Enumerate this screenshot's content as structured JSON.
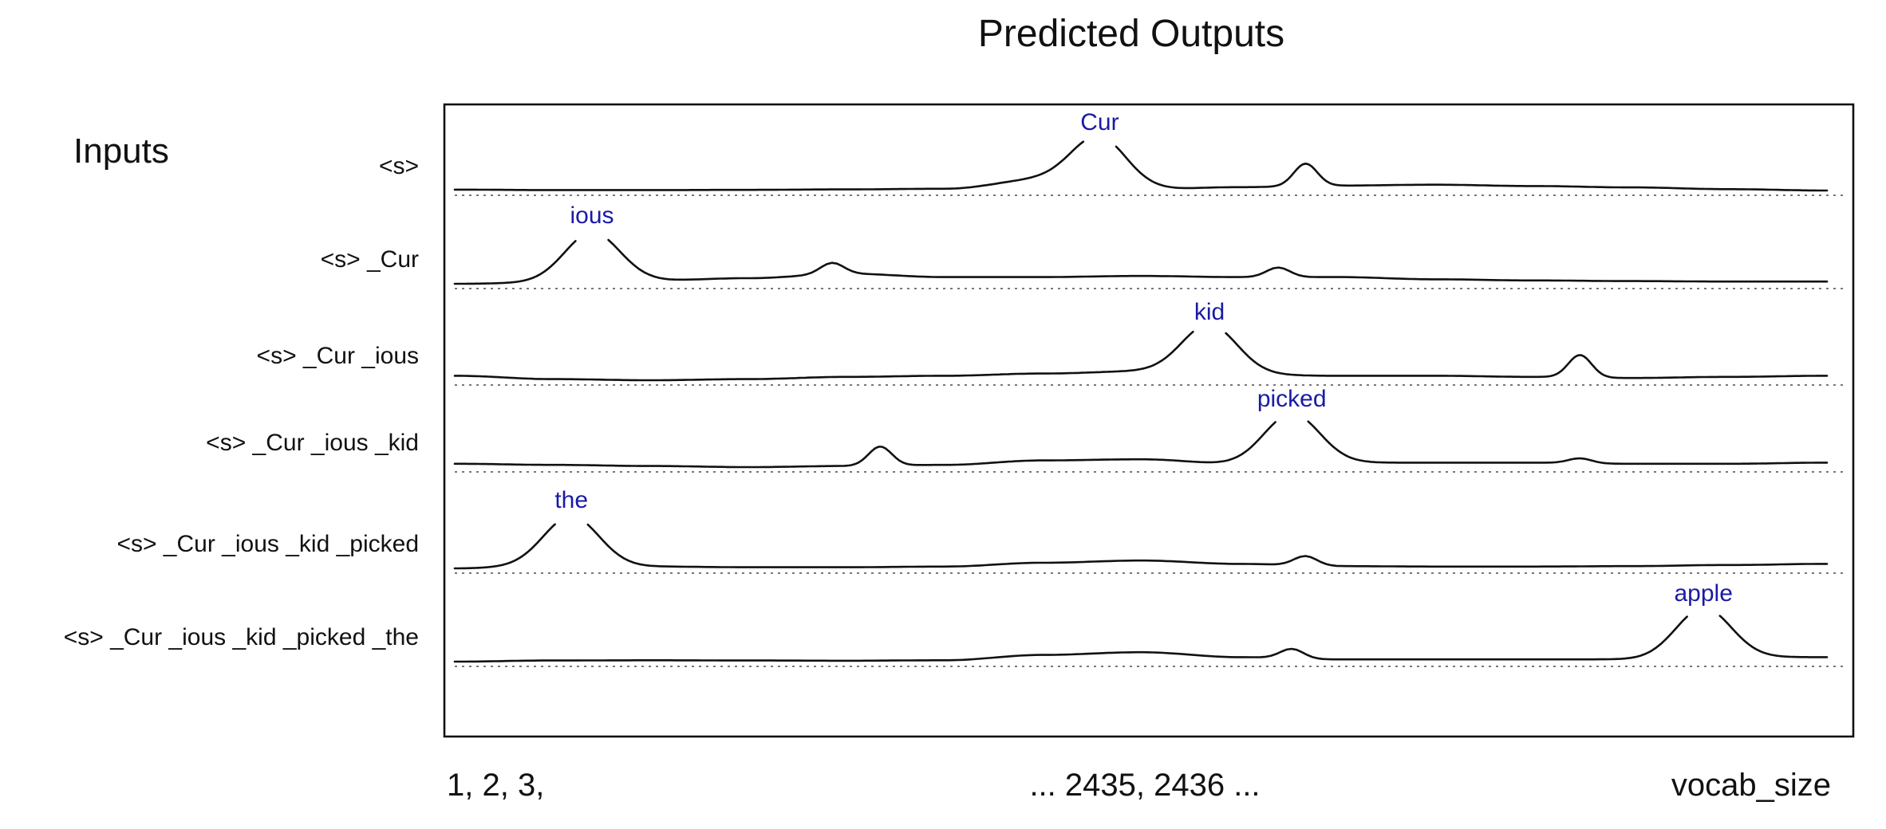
{
  "title": "Predicted Outputs",
  "inputs_heading": "Inputs",
  "colors": {
    "ink": "#111111",
    "token": "#1a1aa6",
    "baseline": "#777777"
  },
  "rows": [
    {
      "input": "<s>",
      "predicted": "Cur",
      "peak_at": 0.47,
      "bumps": [
        {
          "at": 0.62,
          "h": 0.7
        }
      ],
      "noise": [
        0.04,
        0.02,
        0.02,
        0.03,
        0.05,
        0.08,
        0.5,
        0.05,
        0.15,
        0.22,
        0.26,
        0.2,
        0.14,
        0.06,
        0.0
      ]
    },
    {
      "input": "<s> _Cur",
      "predicted": "ious",
      "peak_at": 0.1,
      "bumps": [
        {
          "at": 0.275,
          "h": 0.35
        },
        {
          "at": 0.6,
          "h": 0.3
        }
      ],
      "noise": [
        0.0,
        0.05,
        0.15,
        0.25,
        0.45,
        0.3,
        0.3,
        0.35,
        0.3,
        0.3,
        0.2,
        0.15,
        0.12,
        0.1,
        0.1
      ]
    },
    {
      "input": "<s> _Cur _ious",
      "predicted": "kid",
      "peak_at": 0.55,
      "bumps": [
        {
          "at": 0.82,
          "h": 0.7
        }
      ],
      "noise": [
        0.2,
        0.05,
        0.0,
        0.05,
        0.15,
        0.2,
        0.3,
        0.4,
        0.25,
        0.2,
        0.2,
        0.15,
        0.1,
        0.15,
        0.2
      ]
    },
    {
      "input": "<s> _Cur _ious _kid",
      "predicted": "picked",
      "peak_at": 0.61,
      "bumps": [
        {
          "at": 0.31,
          "h": 0.6
        },
        {
          "at": 0.82,
          "h": 0.15
        }
      ],
      "noise": [
        0.15,
        0.1,
        0.05,
        0.0,
        0.05,
        0.1,
        0.3,
        0.35,
        0.15,
        0.2,
        0.2,
        0.2,
        0.15,
        0.15,
        0.2
      ]
    },
    {
      "input": "<s> _Cur _ious _kid _picked",
      "predicted": "the",
      "peak_at": 0.085,
      "bumps": [
        {
          "at": 0.62,
          "h": 0.3
        }
      ],
      "noise": [
        0.0,
        0.12,
        0.08,
        0.05,
        0.05,
        0.08,
        0.25,
        0.35,
        0.2,
        0.1,
        0.08,
        0.08,
        0.1,
        0.15,
        0.2
      ]
    },
    {
      "input": "<s> _Cur _ious _kid _picked _the",
      "predicted": "apple",
      "peak_at": 0.91,
      "bumps": [
        {
          "at": 0.61,
          "h": 0.3
        }
      ],
      "noise": [
        0.0,
        0.05,
        0.06,
        0.05,
        0.04,
        0.06,
        0.3,
        0.42,
        0.2,
        0.1,
        0.1,
        0.1,
        0.1,
        0.2,
        0.2
      ]
    }
  ],
  "x_axis": {
    "start": "1, 2, 3,",
    "middle": "... 2435, 2436 ...",
    "end": "vocab_size"
  }
}
